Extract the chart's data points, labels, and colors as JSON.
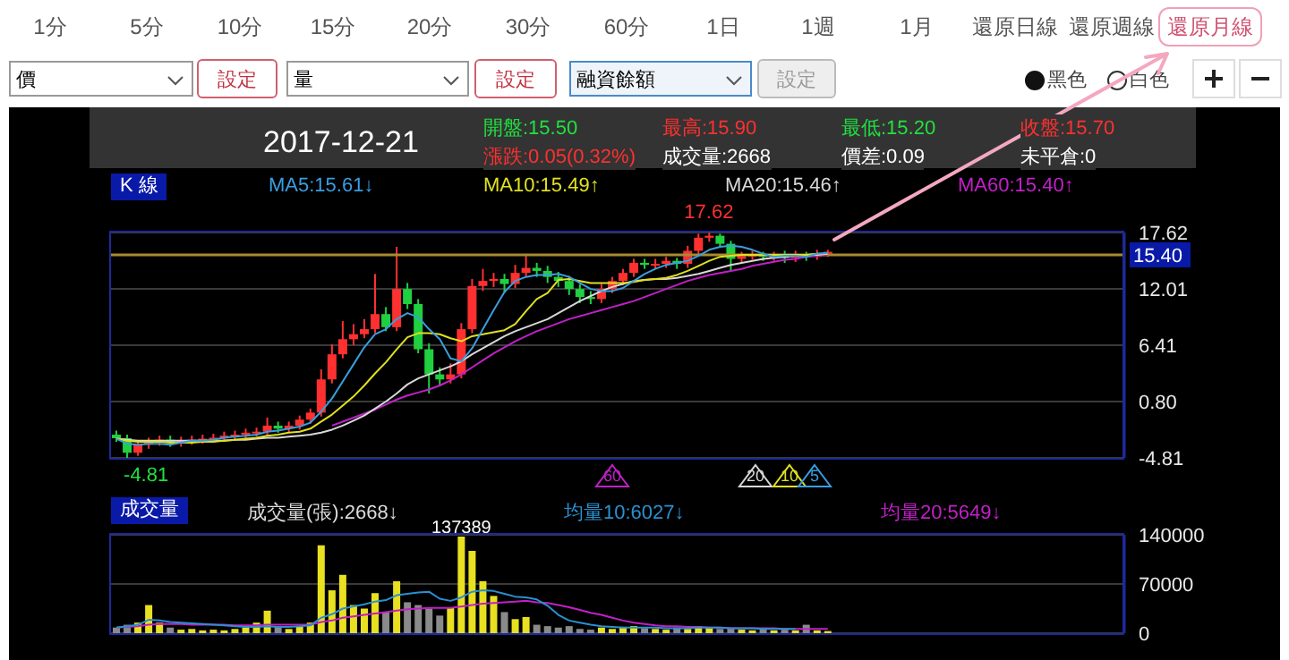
{
  "chart_data": [
    {
      "type": "other",
      "annotations": [
        "1分",
        "5分",
        "10分",
        "15分",
        "20分",
        "30分",
        "60分",
        "1日",
        "1週",
        "1月",
        "還原日線",
        "還原週線",
        "還原月線",
        "價",
        "設定",
        "量",
        "設定",
        "融資餘額",
        "設定",
        "黑色",
        "白色"
      ]
    },
    {
      "type": "candlestick",
      "categories": [
        null,
        null,
        null,
        null,
        null,
        null,
        null,
        null,
        null,
        null,
        null,
        null,
        null,
        null,
        null,
        null,
        null,
        null,
        null,
        null,
        null,
        null,
        null,
        null,
        null,
        null,
        null,
        null,
        null,
        null,
        null,
        null,
        null,
        null,
        null,
        null,
        null,
        null,
        null,
        null,
        null,
        null,
        null,
        null,
        null,
        null,
        null,
        null,
        null,
        null,
        null,
        null,
        null,
        null,
        null,
        null,
        null,
        null,
        null,
        null,
        null,
        null,
        null,
        null,
        null,
        null,
        null,
        null,
        null,
        null,
        null,
        null,
        null,
        null,
        null,
        null,
        null,
        null,
        null,
        null,
        null,
        null,
        null,
        null,
        null,
        null,
        null,
        null,
        null,
        null,
        null,
        null,
        null,
        null
      ],
      "ohlc": [
        [
          -2.5,
          -2.1,
          -3.2,
          -2.85
        ],
        [
          -2.85,
          -2.5,
          -4.81,
          -4.3
        ],
        [
          -4.3,
          -3.1,
          -4.6,
          -3.5
        ],
        [
          -3.5,
          -2.8,
          -3.9,
          -3.2
        ],
        [
          -3.2,
          -2.6,
          -3.6,
          -3.0
        ],
        [
          -3.0,
          -2.6,
          -3.7,
          -3.3
        ],
        [
          -3.3,
          -2.7,
          -3.7,
          -3.1
        ],
        [
          -3.1,
          -2.6,
          -3.5,
          -3.0
        ],
        [
          -3.0,
          -2.5,
          -3.4,
          -2.9
        ],
        [
          -2.9,
          -2.4,
          -3.3,
          -2.8
        ],
        [
          -2.8,
          -2.2,
          -3.2,
          -2.6
        ],
        [
          -2.6,
          -2.1,
          -3.0,
          -2.5
        ],
        [
          -2.5,
          -1.9,
          -2.9,
          -2.3
        ],
        [
          -2.3,
          -1.8,
          -2.7,
          -2.2
        ],
        [
          -2.2,
          -0.8,
          -2.6,
          -1.6
        ],
        [
          -1.6,
          -1.2,
          -2.3,
          -1.9
        ],
        [
          -1.9,
          -1.2,
          -2.3,
          -1.6
        ],
        [
          -1.6,
          -0.6,
          -2.0,
          -1.0
        ],
        [
          -1.0,
          0.1,
          -1.4,
          -0.3
        ],
        [
          -0.3,
          4.0,
          -0.7,
          3.0
        ],
        [
          3.0,
          6.5,
          2.6,
          5.5
        ],
        [
          5.5,
          8.8,
          5.1,
          7.0
        ],
        [
          7.0,
          8.5,
          6.4,
          7.5
        ],
        [
          7.5,
          9.0,
          7.1,
          8.0
        ],
        [
          8.0,
          13.5,
          7.6,
          9.5
        ],
        [
          9.5,
          10.2,
          7.8,
          8.2
        ],
        [
          8.2,
          16.2,
          7.8,
          12.0
        ],
        [
          12.0,
          12.6,
          10.0,
          10.5
        ],
        [
          10.5,
          11.0,
          5.6,
          6.0
        ],
        [
          6.0,
          6.6,
          1.6,
          3.5
        ],
        [
          3.5,
          4.2,
          2.3,
          3.0
        ],
        [
          3.0,
          4.6,
          2.6,
          3.5
        ],
        [
          3.5,
          8.6,
          3.1,
          8.0
        ],
        [
          8.0,
          13.0,
          7.6,
          12.3
        ],
        [
          12.3,
          14.0,
          11.8,
          12.8
        ],
        [
          12.8,
          13.6,
          12.2,
          13.0
        ],
        [
          13.0,
          13.5,
          11.6,
          12.5
        ],
        [
          12.5,
          14.4,
          12.1,
          13.6
        ],
        [
          13.6,
          15.5,
          13.2,
          14.1
        ],
        [
          14.1,
          14.6,
          13.2,
          13.8
        ],
        [
          13.8,
          14.3,
          12.6,
          13.2
        ],
        [
          13.2,
          13.7,
          12.2,
          12.8
        ],
        [
          12.8,
          13.3,
          11.4,
          12.0
        ],
        [
          12.0,
          12.5,
          10.6,
          11.2
        ],
        [
          11.2,
          11.8,
          10.5,
          11.0
        ],
        [
          11.0,
          12.5,
          10.6,
          12.0
        ],
        [
          12.0,
          13.2,
          11.6,
          12.8
        ],
        [
          12.8,
          14.0,
          12.4,
          13.6
        ],
        [
          13.6,
          15.0,
          13.2,
          14.6
        ],
        [
          14.6,
          15.0,
          14.0,
          14.4
        ],
        [
          14.4,
          15.0,
          14.0,
          14.5
        ],
        [
          14.5,
          15.2,
          14.1,
          14.8
        ],
        [
          14.8,
          15.1,
          14.0,
          14.5
        ],
        [
          14.5,
          16.3,
          14.1,
          15.8
        ],
        [
          15.8,
          17.5,
          15.4,
          17.1
        ],
        [
          17.1,
          17.62,
          16.7,
          17.3
        ],
        [
          17.3,
          17.5,
          16.1,
          16.5
        ],
        [
          16.5,
          16.8,
          13.8,
          15.0
        ],
        [
          15.0,
          15.7,
          14.6,
          15.3
        ],
        [
          15.3,
          15.8,
          14.9,
          15.4
        ],
        [
          15.4,
          15.7,
          14.8,
          15.2
        ],
        [
          15.2,
          15.7,
          14.8,
          15.3
        ],
        [
          15.3,
          15.8,
          14.6,
          15.1
        ],
        [
          15.1,
          15.8,
          14.7,
          15.4
        ],
        [
          15.4,
          15.7,
          14.8,
          15.2
        ],
        [
          15.2,
          15.9,
          14.9,
          15.5
        ],
        [
          15.5,
          15.9,
          15.2,
          15.7
        ],
        null,
        null,
        null,
        null,
        null,
        null,
        null,
        null,
        null,
        null,
        null,
        null,
        null,
        null,
        null,
        null,
        null,
        null,
        null,
        null,
        null,
        null,
        null,
        null,
        null,
        null,
        null
      ],
      "series": [
        {
          "type": "line",
          "name": "MA5:15.61↓",
          "color": "#3a9ee0",
          "values": [
            -2.9,
            -3.4,
            -3.5,
            -3.4,
            -3.4,
            -3.5,
            -3.3,
            -3.1,
            -3.1,
            -3.0,
            -2.8,
            -2.7,
            -2.6,
            -2.5,
            -2.2,
            -2.1,
            -1.9,
            -1.7,
            -1.3,
            -0.2,
            1.1,
            2.8,
            4.5,
            6.2,
            7.5,
            8.0,
            9.0,
            9.6,
            9.2,
            8.0,
            7.0,
            5.1,
            4.8,
            6.1,
            8.0,
            9.9,
            11.7,
            12.8,
            13.2,
            13.4,
            13.4,
            13.5,
            13.2,
            12.6,
            12.0,
            11.8,
            11.8,
            12.1,
            12.8,
            13.5,
            14.0,
            14.4,
            14.6,
            14.8,
            15.3,
            15.9,
            16.2,
            16.3,
            16.2,
            15.9,
            15.5,
            15.2,
            15.3,
            15.3,
            15.2,
            15.5,
            15.6,
            null,
            null,
            null,
            null,
            null,
            null,
            null,
            null,
            null,
            null,
            null,
            null,
            null,
            null,
            null,
            null,
            null,
            null,
            null,
            null,
            null,
            null,
            null,
            null,
            null,
            null,
            null
          ]
        },
        {
          "type": "line",
          "name": "MA10:15.49↑",
          "color": "#e0e020",
          "values": [
            -2.9,
            -3.1,
            -3.2,
            -3.2,
            -3.2,
            -3.3,
            -3.3,
            -3.3,
            -3.2,
            -3.2,
            -3.1,
            -3.0,
            -2.9,
            -2.8,
            -2.6,
            -2.5,
            -2.3,
            -2.2,
            -1.9,
            -1.2,
            -0.5,
            0.4,
            1.3,
            2.4,
            3.6,
            4.7,
            6.0,
            7.2,
            7.6,
            7.6,
            7.5,
            7.1,
            6.8,
            7.3,
            7.5,
            7.7,
            7.9,
            8.5,
            9.8,
            11.0,
            11.6,
            12.9,
            13.0,
            12.8,
            12.6,
            12.6,
            12.6,
            12.6,
            12.7,
            12.9,
            13.0,
            13.1,
            13.4,
            13.8,
            14.3,
            14.8,
            15.2,
            15.3,
            15.4,
            15.4,
            15.4,
            15.4,
            15.4,
            15.4,
            15.4,
            15.5,
            15.5,
            null,
            null,
            null,
            null,
            null,
            null,
            null,
            null,
            null,
            null,
            null,
            null,
            null,
            null,
            null,
            null,
            null,
            null,
            null,
            null,
            null,
            null,
            null,
            null,
            null,
            null,
            null
          ]
        },
        {
          "type": "line",
          "name": "MA20:15.46↑",
          "color": "#d8d8d8",
          "values": [
            -2.9,
            -3.0,
            -3.1,
            -3.1,
            -3.1,
            -3.1,
            -3.1,
            -3.1,
            -3.1,
            -3.1,
            -3.1,
            -3.0,
            -3.0,
            -2.9,
            -2.8,
            -2.8,
            -2.7,
            -2.6,
            -2.5,
            -2.3,
            -2.0,
            -1.6,
            -1.1,
            -0.6,
            0.1,
            0.8,
            1.6,
            2.5,
            3.1,
            3.5,
            3.9,
            4.3,
            4.8,
            5.5,
            6.1,
            6.7,
            7.3,
            7.8,
            8.2,
            8.6,
            9.0,
            9.6,
            10.2,
            10.8,
            11.3,
            11.8,
            12.2,
            12.5,
            12.8,
            12.9,
            13.0,
            13.0,
            13.1,
            13.3,
            13.5,
            13.8,
            14.1,
            14.4,
            14.6,
            14.8,
            15.0,
            15.1,
            15.2,
            15.3,
            15.4,
            15.4,
            15.5,
            null,
            null,
            null,
            null,
            null,
            null,
            null,
            null,
            null,
            null,
            null,
            null,
            null,
            null,
            null,
            null,
            null,
            null,
            null,
            null,
            null,
            null,
            null,
            null,
            null,
            null,
            null
          ]
        },
        {
          "type": "line",
          "name": "MA60:15.40↑",
          "color": "#c020c8",
          "values": [
            null,
            null,
            null,
            null,
            null,
            null,
            null,
            null,
            null,
            null,
            null,
            null,
            null,
            null,
            null,
            null,
            null,
            null,
            null,
            null,
            -1.6,
            -1.2,
            -0.8,
            -0.4,
            0.0,
            0.5,
            1.0,
            1.4,
            1.7,
            2.0,
            2.4,
            2.9,
            3.5,
            4.2,
            4.9,
            5.6,
            6.2,
            6.8,
            7.3,
            7.8,
            8.2,
            8.6,
            9.0,
            9.3,
            9.6,
            9.9,
            10.2,
            10.5,
            10.8,
            11.2,
            11.6,
            12.0,
            12.4,
            12.8,
            13.1,
            13.4,
            13.6,
            13.8,
            14.0,
            14.3,
            14.5,
            14.7,
            14.9,
            15.0,
            15.2,
            15.3,
            15.4,
            null,
            null,
            null,
            null,
            null,
            null,
            null,
            null,
            null,
            null,
            null,
            null,
            null,
            null,
            null,
            null,
            null,
            null,
            null,
            null,
            null,
            null,
            null,
            null,
            null,
            null,
            null
          ]
        }
      ],
      "ylim": [
        -4.81,
        17.62
      ],
      "yticks": [
        -4.81,
        {
          "value": 0.8,
          "label": "0.80"
        },
        6.41,
        12.01,
        17.62
      ],
      "grid": "y",
      "legend": "top",
      "ref_lines": [
        {
          "axis": "y",
          "value": 15.4,
          "label": "15.40",
          "color": "#a88a30"
        }
      ],
      "annotations": [
        "2017-12-21",
        "開盤:15.50",
        "最高:15.90",
        "最低:15.20",
        "收盤:15.70",
        "漲跌:0.05(0.32%)",
        "成交量:2668",
        "價差:0.09",
        "未平倉:0",
        "K 線",
        {
          "text": "17.62",
          "y": 17.62
        },
        {
          "text": "-4.81",
          "y": -4.81
        },
        "60",
        "20",
        "10",
        "5"
      ]
    },
    {
      "type": "bar",
      "categories": [
        null,
        null,
        null,
        null,
        null,
        null,
        null,
        null,
        null,
        null,
        null,
        null,
        null,
        null,
        null,
        null,
        null,
        null,
        null,
        null,
        null,
        null,
        null,
        null,
        null,
        null,
        null,
        null,
        null,
        null,
        null,
        null,
        null,
        null,
        null,
        null,
        null,
        null,
        null,
        null,
        null,
        null,
        null,
        null,
        null,
        null,
        null,
        null,
        null,
        null,
        null,
        null,
        null,
        null,
        null,
        null,
        null,
        null,
        null,
        null,
        null,
        null,
        null,
        null,
        null,
        null,
        null,
        null,
        null,
        null,
        null,
        null,
        null,
        null,
        null,
        null,
        null,
        null,
        null,
        null,
        null,
        null,
        null,
        null,
        null,
        null,
        null,
        null,
        null,
        null,
        null,
        null,
        null,
        null
      ],
      "series": [
        {
          "type": "bar",
          "name": "成交量(張):2668↓",
          "values": [
            8000,
            12000,
            15000,
            40000,
            15000,
            8000,
            5000,
            6000,
            4000,
            5000,
            4000,
            6000,
            8000,
            15000,
            32000,
            10000,
            6000,
            9000,
            15000,
            125000,
            61000,
            83000,
            40000,
            35000,
            57000,
            30000,
            74000,
            44000,
            40000,
            35000,
            25000,
            36000,
            137389,
            117000,
            74000,
            53000,
            30000,
            20000,
            23000,
            12000,
            10000,
            8000,
            10000,
            6000,
            5000,
            8000,
            6000,
            9000,
            10000,
            7000,
            6000,
            5000,
            8000,
            6000,
            10000,
            8000,
            6000,
            7000,
            5000,
            4000,
            6000,
            4000,
            5000,
            4000,
            12000,
            4000,
            3000,
            null,
            null,
            null,
            null,
            null,
            null,
            null,
            null,
            null,
            null,
            null,
            null,
            null,
            null,
            null,
            null,
            null,
            null,
            null,
            null,
            null,
            null,
            null,
            null,
            null,
            null,
            null
          ],
          "colors": [
            "#8a8a8a",
            "#8a8a8a",
            "#e8e020",
            "#e8e020",
            "#e8e020",
            "#8a8a8a",
            "#e8e020",
            "#e8e020",
            "#e8e020",
            "#e8e020",
            "#e8e020",
            "#e8e020",
            "#e8e020",
            "#e8e020",
            "#e8e020",
            "#8a8a8a",
            "#e8e020",
            "#e8e020",
            "#e8e020",
            "#e8e020",
            "#e8e020",
            "#e8e020",
            "#e8e020",
            "#e8e020",
            "#e8e020",
            "#8a8a8a",
            "#e8e020",
            "#8a8a8a",
            "#8a8a8a",
            "#8a8a8a",
            "#8a8a8a",
            "#e8e020",
            "#e8e020",
            "#e8e020",
            "#e8e020",
            "#e8e020",
            "#8a8a8a",
            "#e8e020",
            "#e8e020",
            "#8a8a8a",
            "#8a8a8a",
            "#8a8a8a",
            "#8a8a8a",
            "#8a8a8a",
            "#8a8a8a",
            "#e8e020",
            "#e8e020",
            "#e8e020",
            "#e8e020",
            "#8a8a8a",
            "#e8e020",
            "#e8e020",
            "#8a8a8a",
            "#e8e020",
            "#e8e020",
            "#e8e020",
            "#8a8a8a",
            "#8a8a8a",
            "#e8e020",
            "#e8e020",
            "#8a8a8a",
            "#e8e020",
            "#8a8a8a",
            "#e8e020",
            "#8a8a8a",
            "#e8e020",
            "#e8e020",
            null,
            null,
            null,
            null,
            null,
            null,
            null,
            null,
            null,
            null,
            null,
            null,
            null,
            null,
            null,
            null,
            null,
            null,
            null,
            null,
            null,
            null,
            null,
            null,
            null,
            null,
            null
          ],
          "value_labels": [
            null,
            null,
            null,
            null,
            null,
            null,
            null,
            null,
            null,
            null,
            null,
            null,
            null,
            null,
            null,
            null,
            null,
            null,
            null,
            null,
            null,
            null,
            null,
            null,
            null,
            null,
            null,
            null,
            null,
            null,
            null,
            null,
            "137389",
            null,
            null,
            null,
            null,
            null,
            null,
            null,
            null,
            null,
            null,
            null,
            null,
            null,
            null,
            null,
            null,
            null,
            null,
            null,
            null,
            null,
            null,
            null,
            null,
            null,
            null,
            null,
            null,
            null,
            null,
            null,
            null,
            null,
            null,
            null,
            null,
            null,
            null,
            null,
            null,
            null,
            null,
            null,
            null,
            null,
            null,
            null,
            null,
            null,
            null,
            null,
            null,
            null,
            null,
            null,
            null,
            null,
            null,
            null,
            null,
            null
          ]
        },
        {
          "type": "line",
          "name": "均量10:6027↓",
          "color": "#2a90d0",
          "values": [
            8000,
            10000,
            12000,
            19000,
            18000,
            16000,
            15000,
            14000,
            13000,
            12000,
            11000,
            10000,
            9000,
            9000,
            10000,
            9000,
            9000,
            10000,
            11000,
            22000,
            27000,
            35000,
            38000,
            41000,
            45000,
            47000,
            54000,
            56000,
            58000,
            59000,
            49000,
            46000,
            51000,
            59000,
            61000,
            60000,
            56000,
            52000,
            51000,
            48000,
            39000,
            26000,
            18000,
            15000,
            12000,
            10000,
            9000,
            8000,
            8000,
            8000,
            8000,
            7000,
            7000,
            7000,
            8000,
            8000,
            8000,
            7000,
            7000,
            7000,
            6000,
            6000,
            6000,
            6000,
            null,
            null,
            null,
            null,
            null,
            null,
            null,
            null,
            null,
            null,
            null,
            null,
            null,
            null,
            null,
            null,
            null,
            null,
            null,
            null,
            null,
            null,
            null,
            null,
            null,
            null,
            null,
            null,
            null,
            null
          ]
        },
        {
          "type": "line",
          "name": "均量20:5649↓",
          "color": "#c020c8",
          "values": [
            8000,
            9000,
            10000,
            12000,
            13000,
            13000,
            13000,
            12000,
            12000,
            12000,
            12000,
            11000,
            11000,
            11000,
            12000,
            12000,
            12000,
            12000,
            12000,
            16000,
            18000,
            22000,
            24000,
            26000,
            28000,
            30000,
            32000,
            34000,
            35000,
            36000,
            36000,
            36000,
            38000,
            40000,
            42000,
            43000,
            44000,
            45000,
            46000,
            44000,
            43000,
            40000,
            37000,
            33000,
            29000,
            26000,
            22000,
            18000,
            15000,
            13000,
            11000,
            10000,
            10000,
            9000,
            9000,
            8000,
            8000,
            7000,
            7000,
            7000,
            7000,
            7000,
            6000,
            6000,
            6000,
            6000,
            6000,
            null,
            null,
            null,
            null,
            null,
            null,
            null,
            null,
            null,
            null,
            null,
            null,
            null,
            null,
            null,
            null,
            null,
            null,
            null,
            null,
            null,
            null,
            null,
            null,
            null,
            null,
            null
          ]
        }
      ],
      "ylim": [
        0,
        140000
      ],
      "yticks": [
        0,
        70000,
        140000
      ],
      "grid": "y",
      "legend": "top",
      "annotations": [
        "成交量"
      ]
    }
  ]
}
